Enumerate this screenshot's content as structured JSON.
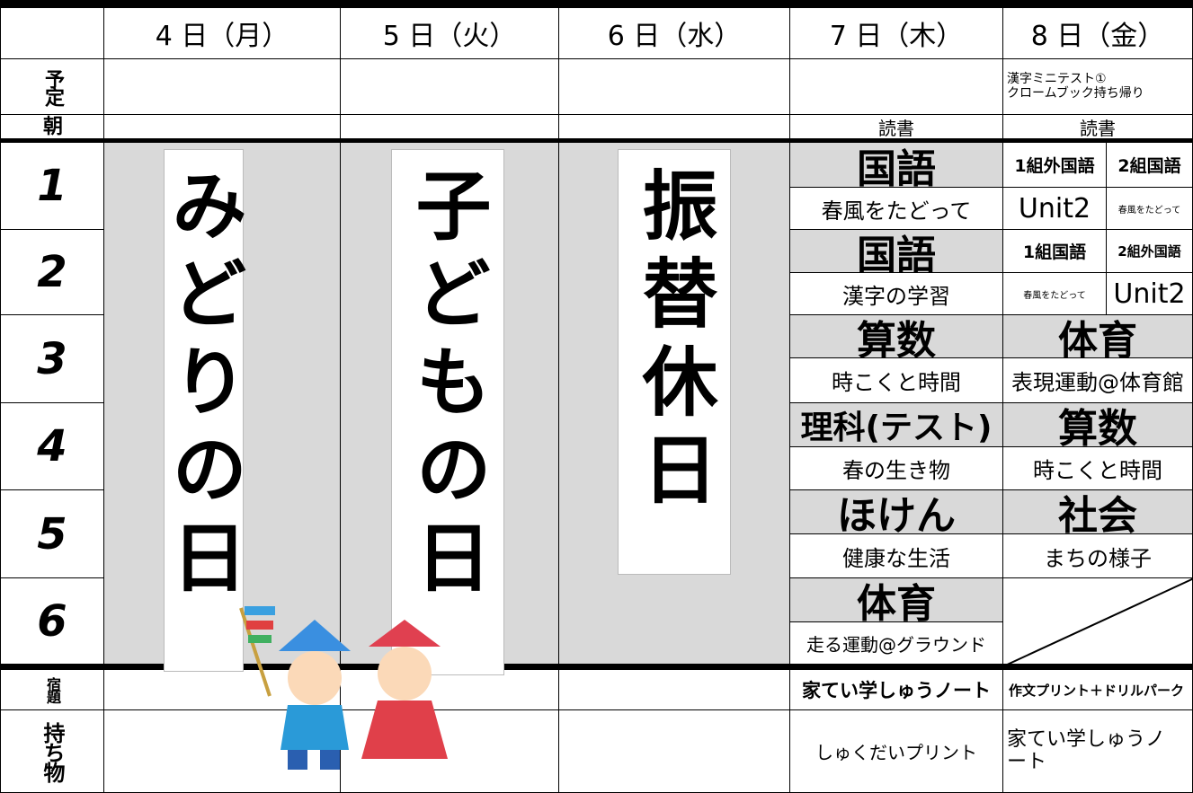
{
  "header": {
    "days": [
      "4 日（月）",
      "5 日（火）",
      "6 日（水）",
      "7 日（木）",
      "8 日（金）"
    ]
  },
  "row_labels": {
    "plan": "予定",
    "morning": "朝",
    "homework": "宿題",
    "belongings": "持ち物"
  },
  "periods": [
    "1",
    "2",
    "3",
    "4",
    "5",
    "6"
  ],
  "plan": {
    "friday": [
      "漢字ミニテスト①",
      "クロームブック持ち帰り"
    ]
  },
  "morning": {
    "thursday": "読書",
    "friday": "読書"
  },
  "banners": [
    "みどりの日",
    "子どもの日",
    "振替休日"
  ],
  "thursday": [
    {
      "subject": "国語",
      "detail": "春風をたどって"
    },
    {
      "subject": "国語",
      "detail": "漢字の学習"
    },
    {
      "subject": "算数",
      "detail": "時こくと時間"
    },
    {
      "subject": "理科(テスト)",
      "detail": "春の生き物"
    },
    {
      "subject": "ほけん",
      "detail": "健康な生活"
    },
    {
      "subject": "体育",
      "detail": "走る運動@グラウンド"
    }
  ],
  "friday": [
    [
      {
        "subject": "1組外国語",
        "detail": "Unit2"
      },
      {
        "subject": "2組国語",
        "detail": "春風をたどって"
      }
    ],
    [
      {
        "subject": "1組国語",
        "detail": "春風をたどって"
      },
      {
        "subject": "2組外国語",
        "detail": "Unit2"
      }
    ],
    {
      "subject": "体育",
      "detail": "表現運動@体育館"
    },
    {
      "subject": "算数",
      "detail": "時こくと時間"
    },
    {
      "subject": "社会",
      "detail": "まちの様子"
    }
  ],
  "homework": {
    "thursday": "家てい学しゅうノート",
    "friday": "作文プリント＋ドリルパーク"
  },
  "belongings": {
    "thursday": "しゅくだいプリント",
    "friday": "家てい学しゅうノート"
  }
}
